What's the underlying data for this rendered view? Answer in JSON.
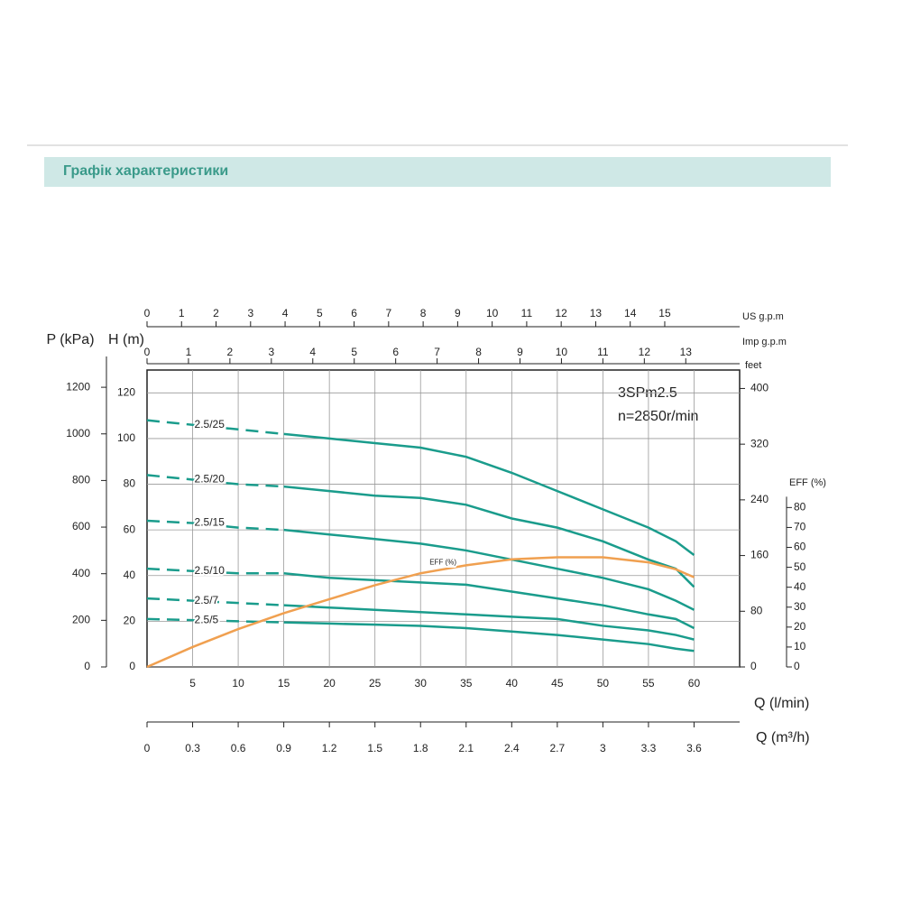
{
  "header": {
    "title": "Графік характеристики"
  },
  "chart_data": {
    "type": "line",
    "annotations": [
      "3SPm2.5",
      "n=2850r/min"
    ],
    "x_label": "Q (l/min)",
    "y_label": "H (m)",
    "y2_label": "EFF (%)",
    "x": [
      0,
      5,
      10,
      15,
      20,
      25,
      30,
      35,
      40,
      45,
      50,
      55,
      58,
      60
    ],
    "xlim": [
      0,
      65
    ],
    "xticks": [
      5,
      10,
      15,
      20,
      25,
      30,
      35,
      40,
      45,
      50,
      55,
      60
    ],
    "ylim": [
      0,
      130
    ],
    "yticks": [
      0,
      20,
      40,
      60,
      80,
      100,
      120
    ],
    "y2lim": [
      0,
      149
    ],
    "y2ticks": [
      0,
      10,
      20,
      30,
      40,
      50,
      60,
      70,
      80
    ],
    "grid": true,
    "series": [
      {
        "name": "2.5/25",
        "color": "#1a9c8c",
        "values": [
          108,
          106,
          104,
          102,
          100,
          98,
          96,
          92,
          85,
          77,
          69,
          61,
          55,
          49
        ]
      },
      {
        "name": "2.5/20",
        "color": "#1a9c8c",
        "values": [
          84,
          82,
          80,
          79,
          77,
          75,
          74,
          71,
          65,
          61,
          55,
          47,
          43,
          35
        ]
      },
      {
        "name": "2.5/15",
        "color": "#1a9c8c",
        "values": [
          64,
          63,
          61,
          60,
          58,
          56,
          54,
          51,
          47,
          43,
          39,
          34,
          29,
          25
        ]
      },
      {
        "name": "2.5/10",
        "color": "#1a9c8c",
        "values": [
          43,
          42,
          41,
          41,
          39,
          38,
          37,
          36,
          33,
          30,
          27,
          23,
          21,
          17
        ]
      },
      {
        "name": "2.5/7",
        "color": "#1a9c8c",
        "values": [
          30,
          29,
          28,
          27,
          26,
          25,
          24,
          23,
          22,
          21,
          18,
          16,
          14,
          12
        ]
      },
      {
        "name": "2.5/5",
        "color": "#1a9c8c",
        "values": [
          21,
          20.5,
          20,
          19.5,
          19,
          18.5,
          18,
          17,
          15.5,
          14,
          12,
          10,
          8,
          7
        ]
      },
      {
        "name": "EFF (%)",
        "color": "#f0a050",
        "axis": "y2",
        "values": [
          0,
          10,
          19,
          27,
          34,
          41,
          47,
          51,
          54,
          55,
          55,
          52.5,
          49,
          45
        ]
      }
    ],
    "extra_axes": [
      {
        "label": "P (kPa)",
        "side": "left",
        "lim": [
          0,
          1274
        ],
        "ticks": [
          0,
          200,
          400,
          600,
          800,
          1000,
          1200
        ]
      },
      {
        "label": "feet",
        "side": "right",
        "lim": [
          0,
          426.5
        ],
        "ticks": [
          0,
          80,
          160,
          240,
          320,
          400
        ]
      },
      {
        "label": "US g.p.m",
        "side": "top",
        "lim": [
          0,
          17.17
        ],
        "ticks": [
          0,
          1,
          2,
          3,
          4,
          5,
          6,
          7,
          8,
          9,
          10,
          11,
          12,
          13,
          14,
          15
        ]
      },
      {
        "label": "Imp g.p.m",
        "side": "top",
        "lim": [
          0,
          14.3
        ],
        "ticks": [
          0,
          1,
          2,
          3,
          4,
          5,
          6,
          7,
          8,
          9,
          10,
          11,
          12,
          13
        ]
      },
      {
        "label": "Q (m³/h)",
        "side": "bottom",
        "lim": [
          0,
          3.9
        ],
        "ticks": [
          0,
          0.3,
          0.6,
          0.9,
          1.2,
          1.5,
          1.8,
          2.1,
          2.4,
          2.7,
          3,
          3.3,
          3.6
        ]
      }
    ]
  }
}
